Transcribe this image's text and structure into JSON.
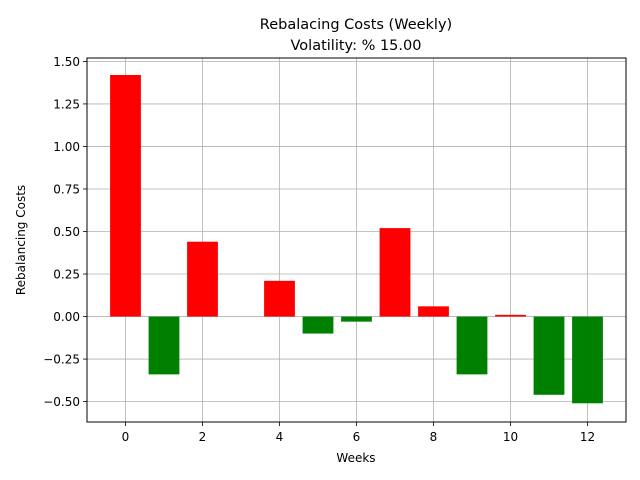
{
  "chart_data": {
    "type": "bar",
    "title": "Rebalacing Costs (Weekly)",
    "subtitle": "Volatility: % 15.00",
    "xlabel": "Weeks",
    "ylabel": "Rebalancing Costs",
    "x": [
      0,
      1,
      2,
      3,
      4,
      5,
      6,
      7,
      8,
      9,
      10,
      11,
      12
    ],
    "values": [
      1.42,
      -0.34,
      0.44,
      0.0,
      0.21,
      -0.1,
      -0.03,
      0.52,
      0.06,
      -0.34,
      0.01,
      -0.46,
      -0.51
    ],
    "positive_color": "#ff0000",
    "negative_color": "#008000",
    "xlim": [
      -1.0,
      13.0
    ],
    "ylim": [
      -0.62,
      1.52
    ],
    "xticks": [
      0,
      2,
      4,
      6,
      8,
      10,
      12
    ],
    "xtick_labels": [
      "0",
      "2",
      "4",
      "6",
      "8",
      "10",
      "12"
    ],
    "yticks": [
      -0.5,
      -0.25,
      0.0,
      0.25,
      0.5,
      0.75,
      1.0,
      1.25,
      1.5
    ],
    "ytick_labels": [
      "−0.50",
      "−0.25",
      "0.00",
      "0.25",
      "0.50",
      "0.75",
      "1.00",
      "1.25",
      "1.50"
    ],
    "grid": true,
    "legend": "none"
  }
}
